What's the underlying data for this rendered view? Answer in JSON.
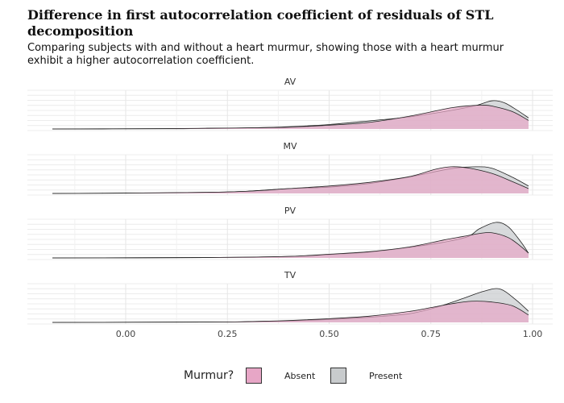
{
  "title": "Difference in first autocorrelation coefficient of residuals of STL decomposition",
  "subtitle": "Comparing subjects with and without a heart murmur, showing those with a heart murmur exhibit a higher autocorrelation coefficient.",
  "legend": {
    "title": "Murmur?",
    "items": [
      {
        "label": "Absent",
        "color": "#e7a6c6"
      },
      {
        "label": "Present",
        "color": "#c8cbcd"
      }
    ]
  },
  "chart_data": {
    "type": "area",
    "xlim": [
      -0.18,
      1.0
    ],
    "x_ticks": [
      "0.00",
      "0.25",
      "0.50",
      "0.75",
      "1.00"
    ],
    "x_tick_values": [
      0,
      0.25,
      0.5,
      0.75,
      1.0
    ],
    "panels": [
      {
        "name": "AV",
        "series": [
          {
            "name": "Absent",
            "points": [
              [
                -0.18,
                0
              ],
              [
                0.1,
                0.01
              ],
              [
                0.2,
                0.02
              ],
              [
                0.3,
                0.03
              ],
              [
                0.4,
                0.05
              ],
              [
                0.5,
                0.1
              ],
              [
                0.6,
                0.18
              ],
              [
                0.7,
                0.35
              ],
              [
                0.8,
                0.57
              ],
              [
                0.85,
                0.63
              ],
              [
                0.88,
                0.64
              ],
              [
                0.9,
                0.62
              ],
              [
                0.95,
                0.47
              ],
              [
                0.99,
                0.23
              ]
            ]
          },
          {
            "name": "Present",
            "points": [
              [
                -0.18,
                0
              ],
              [
                0.1,
                0.005
              ],
              [
                0.2,
                0.015
              ],
              [
                0.3,
                0.03
              ],
              [
                0.4,
                0.06
              ],
              [
                0.5,
                0.12
              ],
              [
                0.6,
                0.22
              ],
              [
                0.7,
                0.33
              ],
              [
                0.8,
                0.5
              ],
              [
                0.86,
                0.63
              ],
              [
                0.9,
                0.76
              ],
              [
                0.93,
                0.71
              ],
              [
                0.96,
                0.52
              ],
              [
                0.99,
                0.3
              ]
            ]
          }
        ]
      },
      {
        "name": "MV",
        "series": [
          {
            "name": "Absent",
            "points": [
              [
                -0.18,
                0
              ],
              [
                0,
                0.01
              ],
              [
                0.2,
                0.03
              ],
              [
                0.3,
                0.06
              ],
              [
                0.4,
                0.13
              ],
              [
                0.5,
                0.2
              ],
              [
                0.6,
                0.3
              ],
              [
                0.7,
                0.46
              ],
              [
                0.76,
                0.65
              ],
              [
                0.8,
                0.72
              ],
              [
                0.84,
                0.69
              ],
              [
                0.9,
                0.54
              ],
              [
                0.95,
                0.32
              ],
              [
                0.99,
                0.13
              ]
            ]
          },
          {
            "name": "Present",
            "points": [
              [
                -0.18,
                0
              ],
              [
                0,
                0.01
              ],
              [
                0.2,
                0.03
              ],
              [
                0.3,
                0.06
              ],
              [
                0.4,
                0.13
              ],
              [
                0.5,
                0.17
              ],
              [
                0.6,
                0.27
              ],
              [
                0.7,
                0.45
              ],
              [
                0.8,
                0.67
              ],
              [
                0.86,
                0.72
              ],
              [
                0.9,
                0.68
              ],
              [
                0.95,
                0.44
              ],
              [
                0.99,
                0.2
              ]
            ]
          }
        ]
      },
      {
        "name": "PV",
        "series": [
          {
            "name": "Absent",
            "points": [
              [
                -0.18,
                0
              ],
              [
                0.2,
                0.01
              ],
              [
                0.4,
                0.04
              ],
              [
                0.5,
                0.1
              ],
              [
                0.6,
                0.17
              ],
              [
                0.7,
                0.3
              ],
              [
                0.78,
                0.48
              ],
              [
                0.83,
                0.58
              ],
              [
                0.87,
                0.66
              ],
              [
                0.9,
                0.68
              ],
              [
                0.94,
                0.55
              ],
              [
                0.97,
                0.32
              ],
              [
                0.99,
                0.13
              ]
            ]
          },
          {
            "name": "Present",
            "points": [
              [
                -0.18,
                0
              ],
              [
                0.2,
                0.01
              ],
              [
                0.4,
                0.04
              ],
              [
                0.5,
                0.09
              ],
              [
                0.6,
                0.16
              ],
              [
                0.7,
                0.29
              ],
              [
                0.78,
                0.42
              ],
              [
                0.84,
                0.57
              ],
              [
                0.87,
                0.79
              ],
              [
                0.91,
                0.96
              ],
              [
                0.94,
                0.84
              ],
              [
                0.97,
                0.45
              ],
              [
                0.99,
                0.13
              ]
            ]
          }
        ]
      },
      {
        "name": "TV",
        "series": [
          {
            "name": "Absent",
            "points": [
              [
                -0.18,
                0
              ],
              [
                0.2,
                0.01
              ],
              [
                0.3,
                0.02
              ],
              [
                0.4,
                0.05
              ],
              [
                0.5,
                0.1
              ],
              [
                0.6,
                0.17
              ],
              [
                0.7,
                0.3
              ],
              [
                0.75,
                0.4
              ],
              [
                0.8,
                0.5
              ],
              [
                0.85,
                0.57
              ],
              [
                0.9,
                0.55
              ],
              [
                0.95,
                0.45
              ],
              [
                0.99,
                0.2
              ]
            ]
          },
          {
            "name": "Present",
            "points": [
              [
                -0.18,
                0
              ],
              [
                0.2,
                0.01
              ],
              [
                0.3,
                0.02
              ],
              [
                0.4,
                0.04
              ],
              [
                0.5,
                0.08
              ],
              [
                0.6,
                0.14
              ],
              [
                0.7,
                0.24
              ],
              [
                0.77,
                0.43
              ],
              [
                0.83,
                0.65
              ],
              [
                0.88,
                0.84
              ],
              [
                0.92,
                0.9
              ],
              [
                0.96,
                0.6
              ],
              [
                0.99,
                0.3
              ]
            ]
          }
        ]
      }
    ]
  }
}
